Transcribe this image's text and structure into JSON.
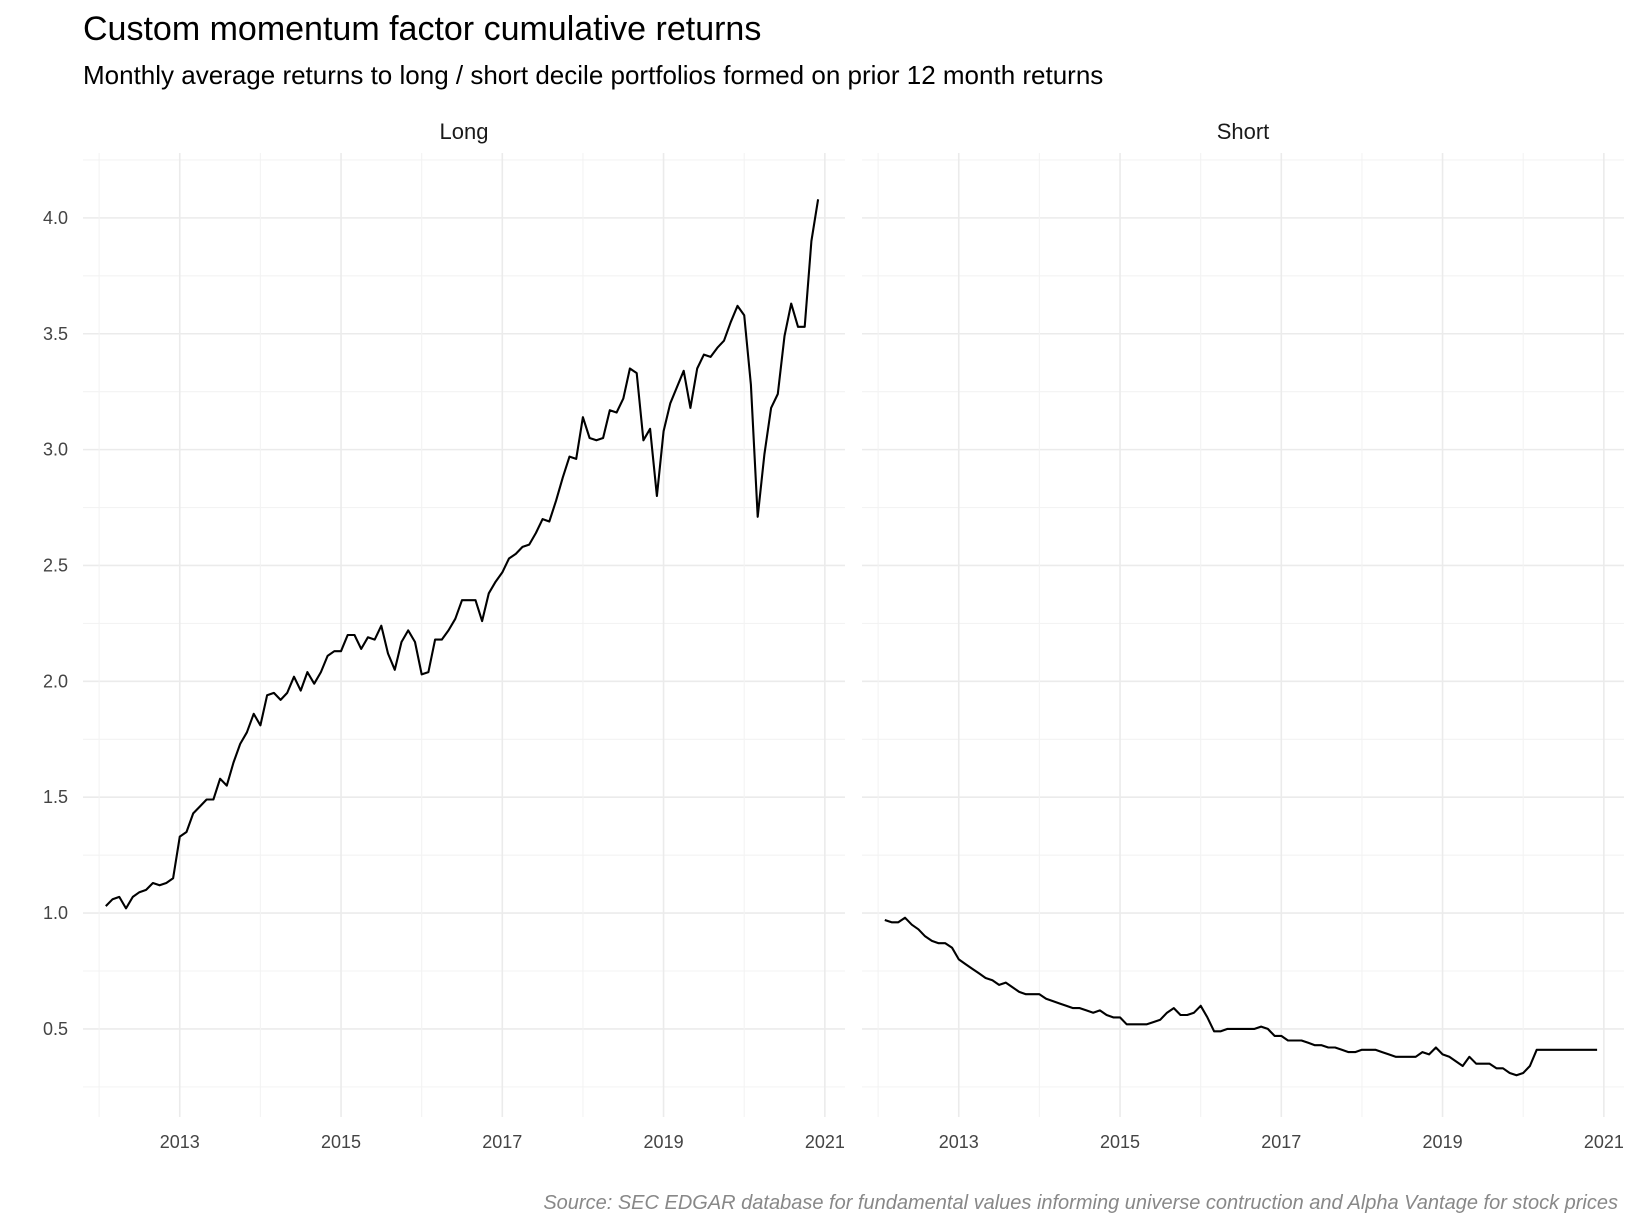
{
  "chart_data": {
    "type": "line",
    "title": "Custom momentum factor cumulative returns",
    "subtitle": "Monthly average returns to long / short decile portfolios formed on prior 12 month returns",
    "caption": "Source: SEC EDGAR database for fundamental values informing universe contruction and Alpha Vantage for stock prices",
    "xlabel": "",
    "ylabel": "",
    "ylim": [
      0.12,
      4.28
    ],
    "xlim": [
      2011.8,
      2021.25
    ],
    "grid": true,
    "y_ticks": [
      "0.5",
      "1.0",
      "1.5",
      "2.0",
      "2.5",
      "3.0",
      "3.5",
      "4.0"
    ],
    "x_ticks": [
      "2013",
      "2015",
      "2017",
      "2019",
      "2021"
    ],
    "panels": [
      {
        "name": "Long",
        "x": [
          2012.083,
          2012.167,
          2012.25,
          2012.333,
          2012.417,
          2012.5,
          2012.583,
          2012.667,
          2012.75,
          2012.833,
          2012.917,
          2013.0,
          2013.083,
          2013.167,
          2013.25,
          2013.333,
          2013.417,
          2013.5,
          2013.583,
          2013.667,
          2013.75,
          2013.833,
          2013.917,
          2014.0,
          2014.083,
          2014.167,
          2014.25,
          2014.333,
          2014.417,
          2014.5,
          2014.583,
          2014.667,
          2014.75,
          2014.833,
          2014.917,
          2015.0,
          2015.083,
          2015.167,
          2015.25,
          2015.333,
          2015.417,
          2015.5,
          2015.583,
          2015.667,
          2015.75,
          2015.833,
          2015.917,
          2016.0,
          2016.083,
          2016.167,
          2016.25,
          2016.333,
          2016.417,
          2016.5,
          2016.583,
          2016.667,
          2016.75,
          2016.833,
          2016.917,
          2017.0,
          2017.083,
          2017.167,
          2017.25,
          2017.333,
          2017.417,
          2017.5,
          2017.583,
          2017.667,
          2017.75,
          2017.833,
          2017.917,
          2018.0,
          2018.083,
          2018.167,
          2018.25,
          2018.333,
          2018.417,
          2018.5,
          2018.583,
          2018.667,
          2018.75,
          2018.833,
          2018.917,
          2019.0,
          2019.083,
          2019.167,
          2019.25,
          2019.333,
          2019.417,
          2019.5,
          2019.583,
          2019.667,
          2019.75,
          2019.833,
          2019.917,
          2020.0,
          2020.083,
          2020.167,
          2020.25,
          2020.333,
          2020.417,
          2020.5,
          2020.583,
          2020.667,
          2020.75,
          2020.833,
          2020.917
        ],
        "values": [
          1.03,
          1.06,
          1.07,
          1.02,
          1.07,
          1.09,
          1.1,
          1.13,
          1.12,
          1.13,
          1.15,
          1.33,
          1.35,
          1.43,
          1.46,
          1.49,
          1.49,
          1.58,
          1.55,
          1.65,
          1.73,
          1.78,
          1.86,
          1.81,
          1.94,
          1.95,
          1.92,
          1.95,
          2.02,
          1.96,
          2.04,
          1.99,
          2.04,
          2.11,
          2.13,
          2.13,
          2.2,
          2.2,
          2.14,
          2.19,
          2.18,
          2.24,
          2.12,
          2.05,
          2.17,
          2.22,
          2.17,
          2.03,
          2.04,
          2.18,
          2.18,
          2.22,
          2.27,
          2.35,
          2.35,
          2.35,
          2.26,
          2.38,
          2.43,
          2.47,
          2.53,
          2.55,
          2.58,
          2.59,
          2.64,
          2.7,
          2.69,
          2.78,
          2.88,
          2.97,
          2.96,
          3.14,
          3.05,
          3.04,
          3.05,
          3.17,
          3.16,
          3.22,
          3.35,
          3.33,
          3.04,
          3.09,
          2.8,
          3.08,
          3.2,
          3.27,
          3.34,
          3.18,
          3.35,
          3.41,
          3.4,
          3.44,
          3.47,
          3.55,
          3.62,
          3.58,
          3.28,
          2.71,
          2.98,
          3.18,
          3.24,
          3.49,
          3.63,
          3.53,
          3.53,
          3.9,
          4.08
        ]
      },
      {
        "name": "Short",
        "x": [
          2012.083,
          2012.167,
          2012.25,
          2012.333,
          2012.417,
          2012.5,
          2012.583,
          2012.667,
          2012.75,
          2012.833,
          2012.917,
          2013.0,
          2013.083,
          2013.167,
          2013.25,
          2013.333,
          2013.417,
          2013.5,
          2013.583,
          2013.667,
          2013.75,
          2013.833,
          2013.917,
          2014.0,
          2014.083,
          2014.167,
          2014.25,
          2014.333,
          2014.417,
          2014.5,
          2014.583,
          2014.667,
          2014.75,
          2014.833,
          2014.917,
          2015.0,
          2015.083,
          2015.167,
          2015.25,
          2015.333,
          2015.417,
          2015.5,
          2015.583,
          2015.667,
          2015.75,
          2015.833,
          2015.917,
          2016.0,
          2016.083,
          2016.167,
          2016.25,
          2016.333,
          2016.417,
          2016.5,
          2016.583,
          2016.667,
          2016.75,
          2016.833,
          2016.917,
          2017.0,
          2017.083,
          2017.167,
          2017.25,
          2017.333,
          2017.417,
          2017.5,
          2017.583,
          2017.667,
          2017.75,
          2017.833,
          2017.917,
          2018.0,
          2018.083,
          2018.167,
          2018.25,
          2018.333,
          2018.417,
          2018.5,
          2018.583,
          2018.667,
          2018.75,
          2018.833,
          2018.917,
          2019.0,
          2019.083,
          2019.167,
          2019.25,
          2019.333,
          2019.417,
          2019.5,
          2019.583,
          2019.667,
          2019.75,
          2019.833,
          2019.917,
          2020.0,
          2020.083,
          2020.167,
          2020.25,
          2020.333,
          2020.417,
          2020.5,
          2020.583,
          2020.667,
          2020.75,
          2020.833,
          2020.917
        ],
        "values": [
          0.97,
          0.96,
          0.96,
          0.98,
          0.95,
          0.93,
          0.9,
          0.88,
          0.87,
          0.87,
          0.85,
          0.8,
          0.78,
          0.76,
          0.74,
          0.72,
          0.71,
          0.69,
          0.7,
          0.68,
          0.66,
          0.65,
          0.65,
          0.65,
          0.63,
          0.62,
          0.61,
          0.6,
          0.59,
          0.59,
          0.58,
          0.57,
          0.58,
          0.56,
          0.55,
          0.55,
          0.52,
          0.52,
          0.52,
          0.52,
          0.53,
          0.54,
          0.57,
          0.59,
          0.56,
          0.56,
          0.57,
          0.6,
          0.55,
          0.49,
          0.49,
          0.5,
          0.5,
          0.5,
          0.5,
          0.5,
          0.51,
          0.5,
          0.47,
          0.47,
          0.45,
          0.45,
          0.45,
          0.44,
          0.43,
          0.43,
          0.42,
          0.42,
          0.41,
          0.4,
          0.4,
          0.41,
          0.41,
          0.41,
          0.4,
          0.39,
          0.38,
          0.38,
          0.38,
          0.38,
          0.4,
          0.39,
          0.42,
          0.39,
          0.38,
          0.36,
          0.34,
          0.38,
          0.35,
          0.35,
          0.35,
          0.33,
          0.33,
          0.31,
          0.3,
          0.31,
          0.34,
          0.41,
          0.41,
          0.41,
          0.41,
          0.41,
          0.41,
          0.41,
          0.41,
          0.41,
          0.41
        ]
      }
    ]
  }
}
